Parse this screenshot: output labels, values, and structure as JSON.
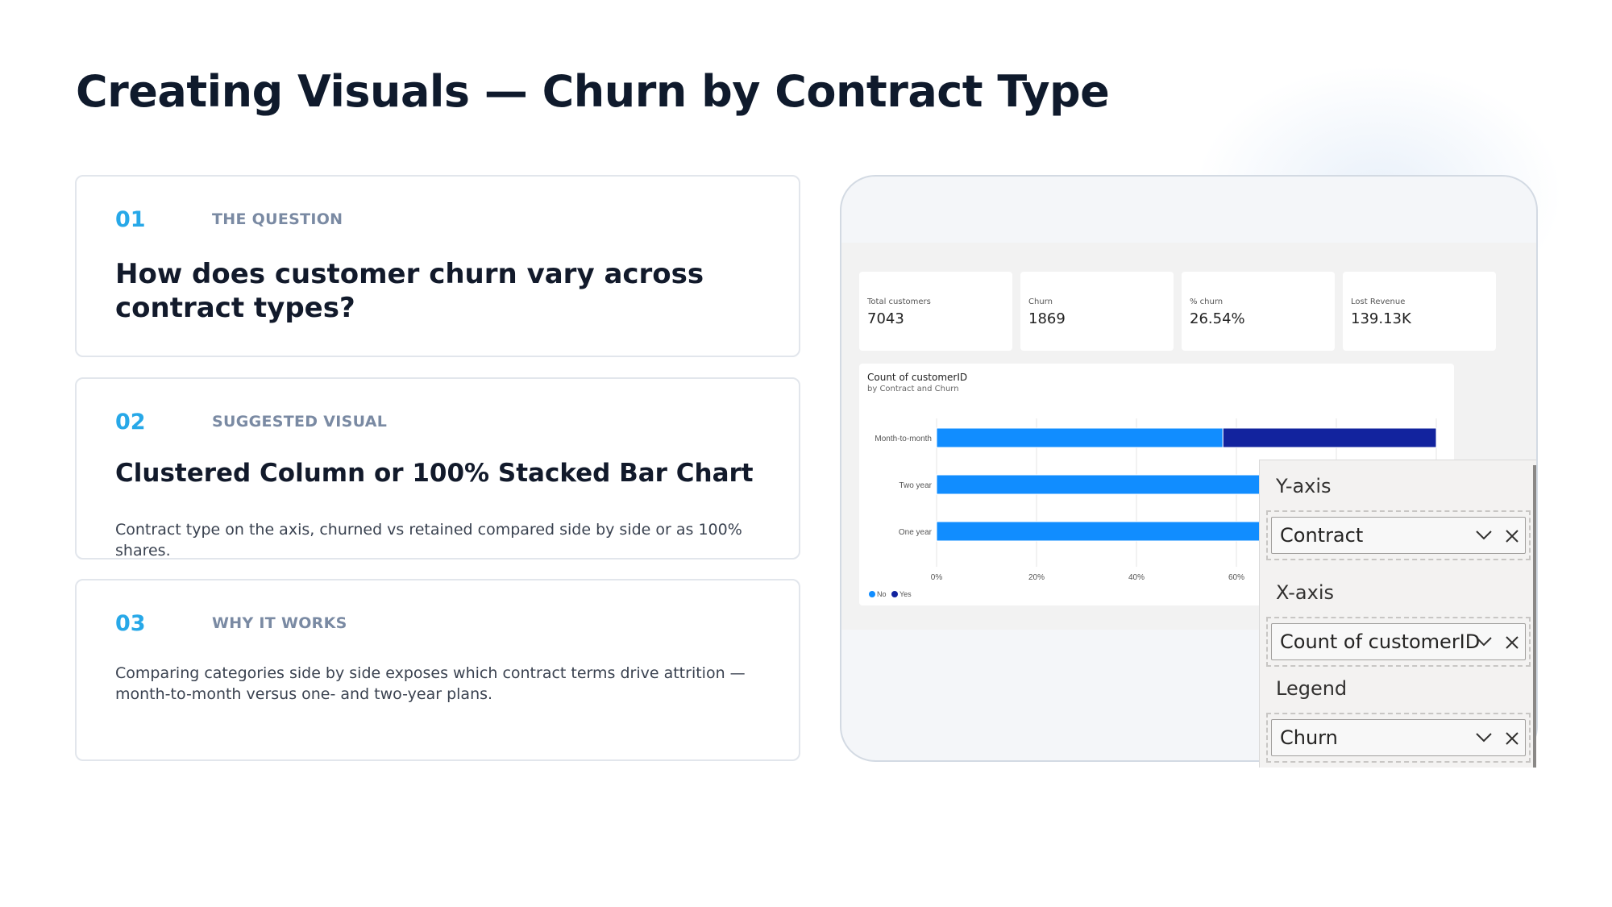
{
  "slide": {
    "title": "Creating Visuals — Churn by Contract Type",
    "cards": [
      {
        "number": "01",
        "label": "THE QUESTION",
        "heading": "How does customer churn vary across contract types?",
        "body": ""
      },
      {
        "number": "02",
        "label": "SUGGESTED VISUAL",
        "heading": "Clustered Column or 100% Stacked Bar Chart",
        "body": "Contract type on the axis, churned vs retained compared side by side or as 100% shares."
      },
      {
        "number": "03",
        "label": "WHY IT WORKS",
        "heading": "",
        "body": "Comparing categories side by side exposes which contract terms drive attrition — month-to-month versus one- and two-year plans."
      }
    ]
  },
  "kpis": [
    {
      "label": "Total customers",
      "value": "7043"
    },
    {
      "label": "Churn",
      "value": "1869"
    },
    {
      "label": "% churn",
      "value": "26.54%"
    },
    {
      "label": "Lost Revenue",
      "value": "139.13K"
    }
  ],
  "chart_data": {
    "type": "bar",
    "orientation": "horizontal",
    "stacking": "100%",
    "title": "Count of customerID",
    "subtitle": "by Contract and Churn",
    "categories": [
      "Month-to-month",
      "Two year",
      "One year"
    ],
    "series": [
      {
        "name": "No",
        "color": "#118dff",
        "values": [
          57.3,
          97.2,
          88.7
        ]
      },
      {
        "name": "Yes",
        "color": "#12239e",
        "values": [
          42.7,
          2.8,
          11.3
        ]
      }
    ],
    "x_ticks": [
      "0%",
      "20%",
      "40%",
      "60%"
    ],
    "xlim": [
      0,
      100
    ],
    "legend": "bottom-left",
    "grid": true
  },
  "fields_pane": {
    "wells": [
      {
        "label": "Y-axis",
        "field": "Contract"
      },
      {
        "label": "X-axis",
        "field": "Count of customerID"
      },
      {
        "label": "Legend",
        "field": "Churn"
      }
    ]
  }
}
